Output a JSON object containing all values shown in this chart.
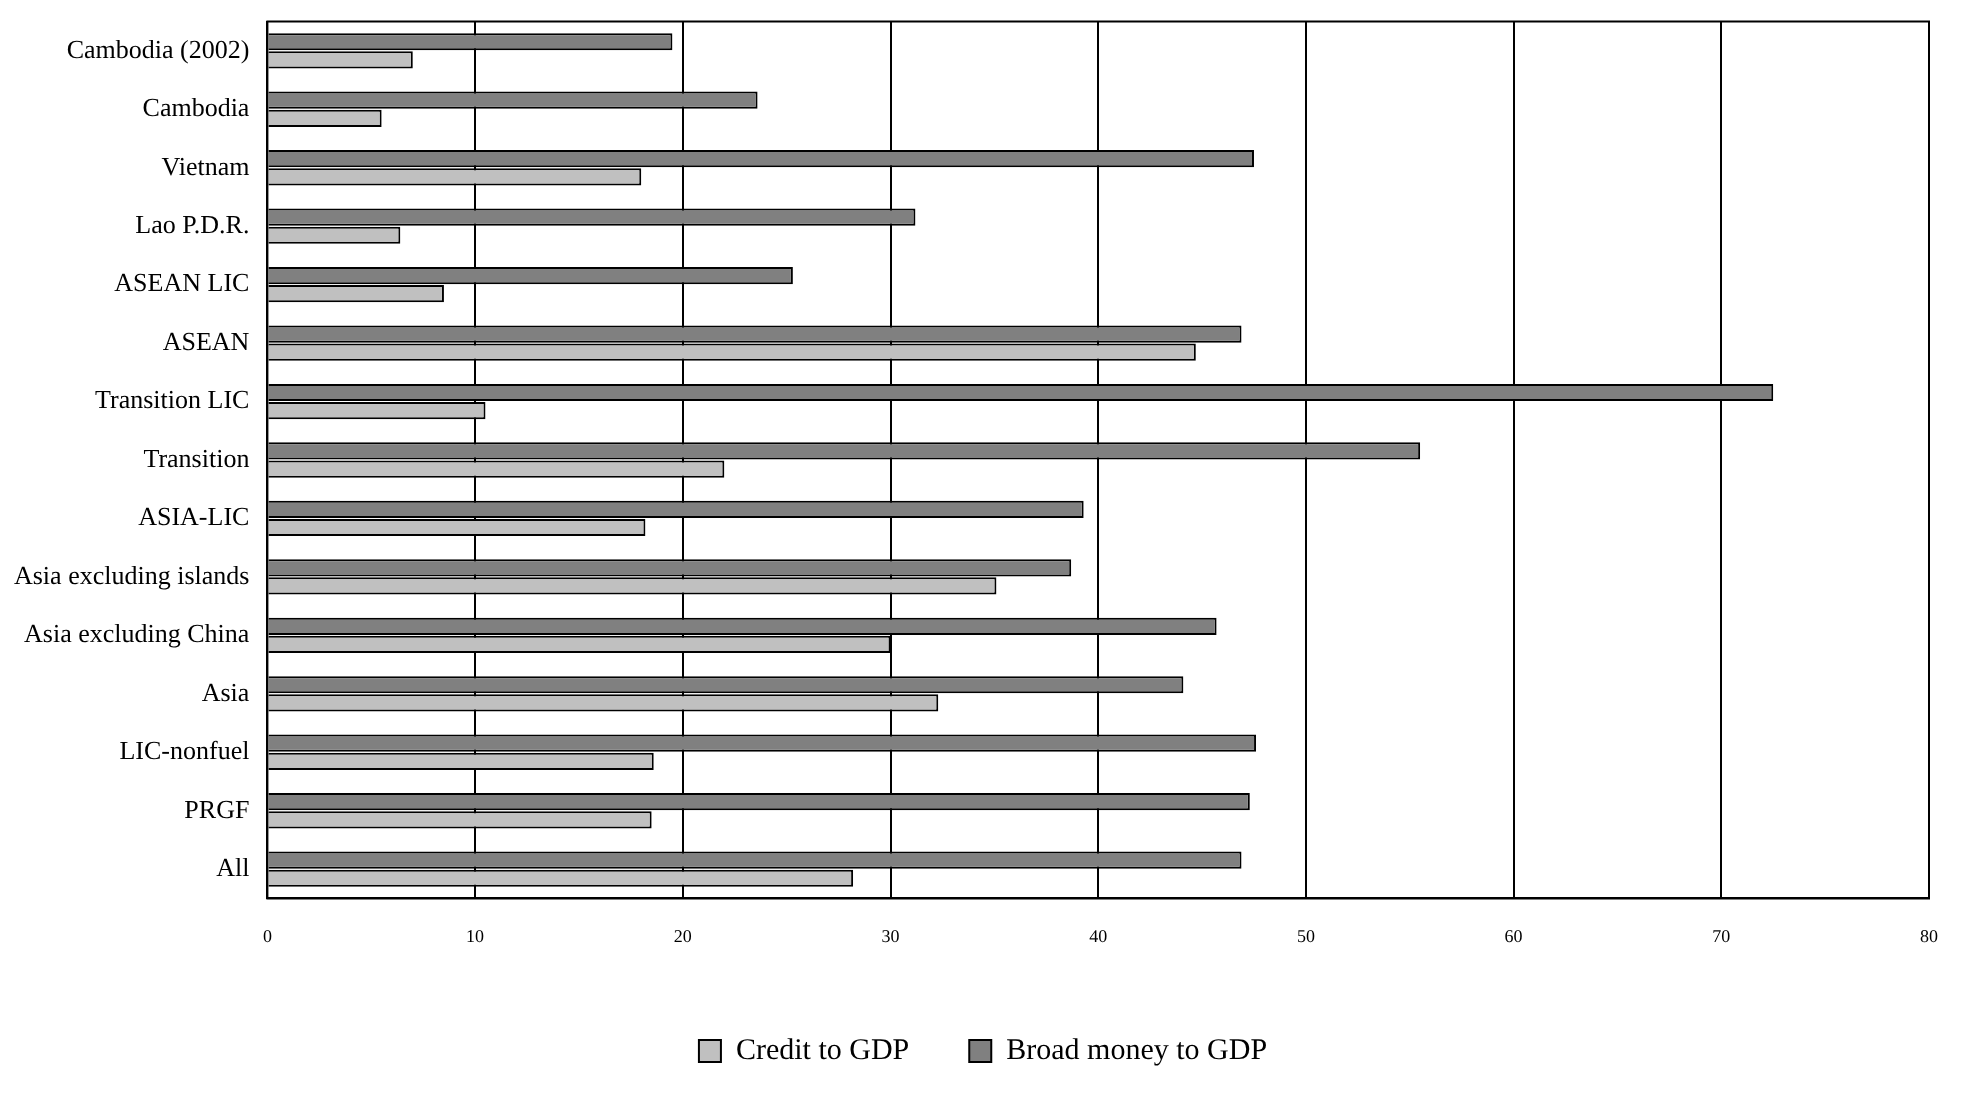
{
  "chart_data": {
    "type": "bar",
    "orientation": "horizontal",
    "categories": [
      "Cambodia (2002)",
      "Cambodia",
      "Vietnam",
      "Lao P.D.R.",
      "ASEAN LIC",
      "ASEAN",
      "Transition LIC",
      "Transition",
      "ASIA-LIC",
      "Asia excluding islands",
      "Asia excluding China",
      "Asia",
      "LIC-nonfuel",
      "PRGF",
      "All"
    ],
    "series": [
      {
        "name": "Broad money to GDP",
        "color": "#808080",
        "values": [
          19.5,
          23.6,
          47.5,
          31.2,
          25.3,
          46.9,
          72.5,
          55.5,
          39.3,
          38.7,
          45.7,
          44.1,
          47.6,
          47.3,
          46.9
        ]
      },
      {
        "name": "Credit to GDP",
        "color": "#c0c0c0",
        "values": [
          7.0,
          5.5,
          18.0,
          6.4,
          8.5,
          44.7,
          10.5,
          22.0,
          18.2,
          35.1,
          30.0,
          32.3,
          18.6,
          18.5,
          28.2
        ]
      }
    ],
    "xlim": [
      0,
      80
    ],
    "xticks": [
      0,
      10,
      20,
      30,
      40,
      50,
      60,
      70,
      80
    ],
    "grid": "x",
    "legend": "bottom"
  }
}
